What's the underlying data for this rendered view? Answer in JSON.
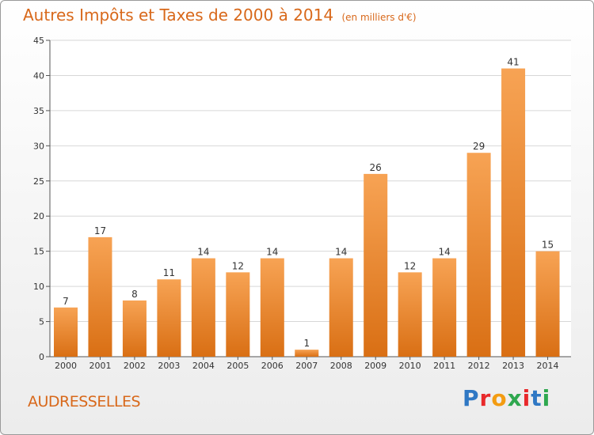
{
  "header": {
    "title": "Autres Impôts et Taxes de 2000 à 2014",
    "unit": "(en milliers d'€)"
  },
  "footer": {
    "commune": "AUDRESSELLES",
    "logo": [
      "P",
      "r",
      "o",
      "x",
      "i",
      "t",
      "i"
    ]
  },
  "colors": {
    "accent": "#d8681a",
    "bar_top": "#f7a354",
    "bar_bottom": "#d96f14",
    "logo": [
      "#2f78c4",
      "#e8292b",
      "#f39c12",
      "#2fa84f",
      "#e8292b",
      "#2f78c4",
      "#2fa84f"
    ]
  },
  "chart_data": {
    "type": "bar",
    "categories": [
      "2000",
      "2001",
      "2002",
      "2003",
      "2004",
      "2005",
      "2006",
      "2007",
      "2008",
      "2009",
      "2010",
      "2011",
      "2012",
      "2013",
      "2014"
    ],
    "values": [
      7,
      17,
      8,
      11,
      14,
      12,
      14,
      1,
      14,
      26,
      12,
      14,
      29,
      41,
      15
    ],
    "title": "Autres Impôts et Taxes de 2000 à 2014",
    "ylim": [
      0,
      45
    ],
    "yticks": [
      0,
      5,
      10,
      15,
      20,
      25,
      30,
      35,
      40,
      45
    ],
    "grid": true
  }
}
